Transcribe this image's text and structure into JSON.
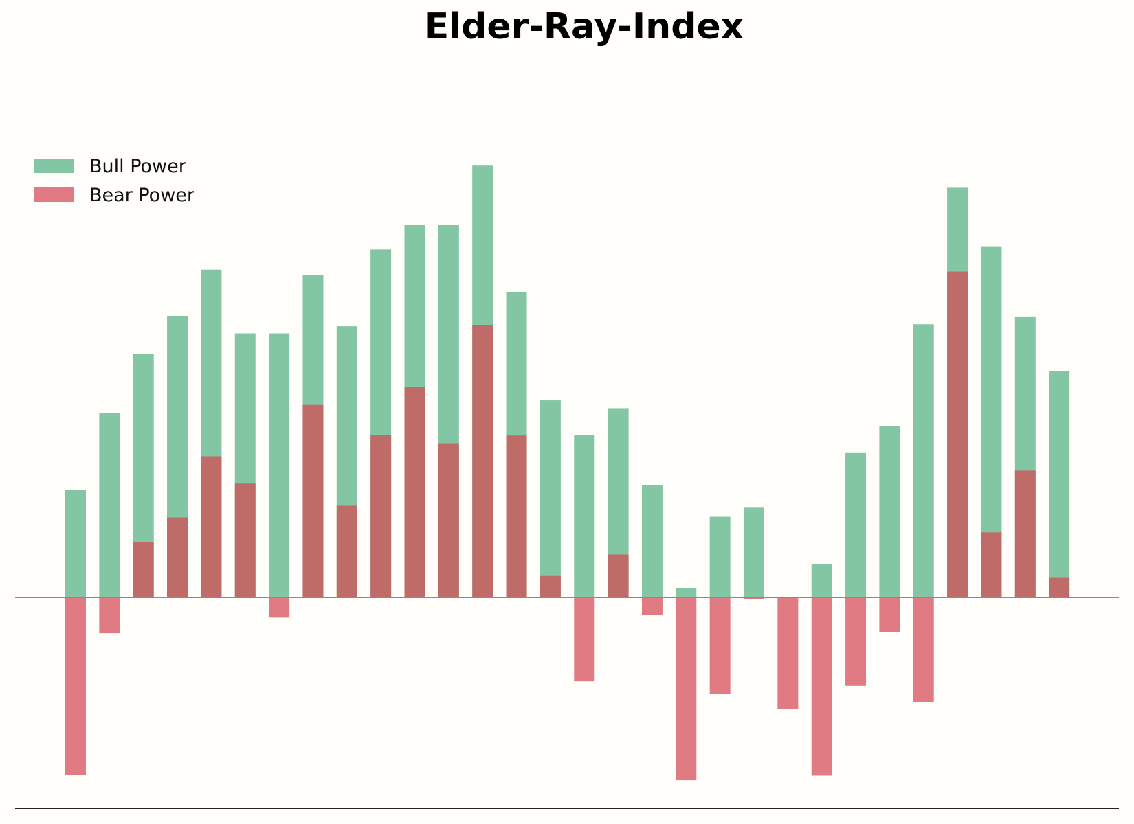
{
  "chart_data": {
    "type": "bar",
    "title": "Elder-Ray-Index",
    "xlabel": "",
    "ylabel": "",
    "ylim": [
      -3.0,
      7.0
    ],
    "grid": false,
    "legend_position": "top-left",
    "series": [
      {
        "name": "Bull Power",
        "color": "#82c6a3",
        "values": [
          1.65,
          2.83,
          3.74,
          4.33,
          5.04,
          4.06,
          4.06,
          4.96,
          4.17,
          5.35,
          5.73,
          5.73,
          6.64,
          4.7,
          3.03,
          2.5,
          2.91,
          1.73,
          0.14,
          1.24,
          1.38,
          0.0,
          0.51,
          2.23,
          2.64,
          4.2,
          6.3,
          5.4,
          4.32,
          3.48
        ]
      },
      {
        "name": "Bear Power",
        "color": "#e07a83",
        "values": [
          -2.73,
          -0.55,
          0.85,
          1.23,
          2.17,
          1.75,
          -0.31,
          2.96,
          1.41,
          2.5,
          3.24,
          2.37,
          4.19,
          2.49,
          0.33,
          -1.29,
          0.66,
          -0.27,
          -2.81,
          -1.48,
          -0.03,
          -1.72,
          -2.74,
          -1.36,
          -0.53,
          -1.61,
          5.01,
          1.0,
          1.95,
          0.3
        ]
      }
    ],
    "overlap_color": "#bf6b67"
  }
}
